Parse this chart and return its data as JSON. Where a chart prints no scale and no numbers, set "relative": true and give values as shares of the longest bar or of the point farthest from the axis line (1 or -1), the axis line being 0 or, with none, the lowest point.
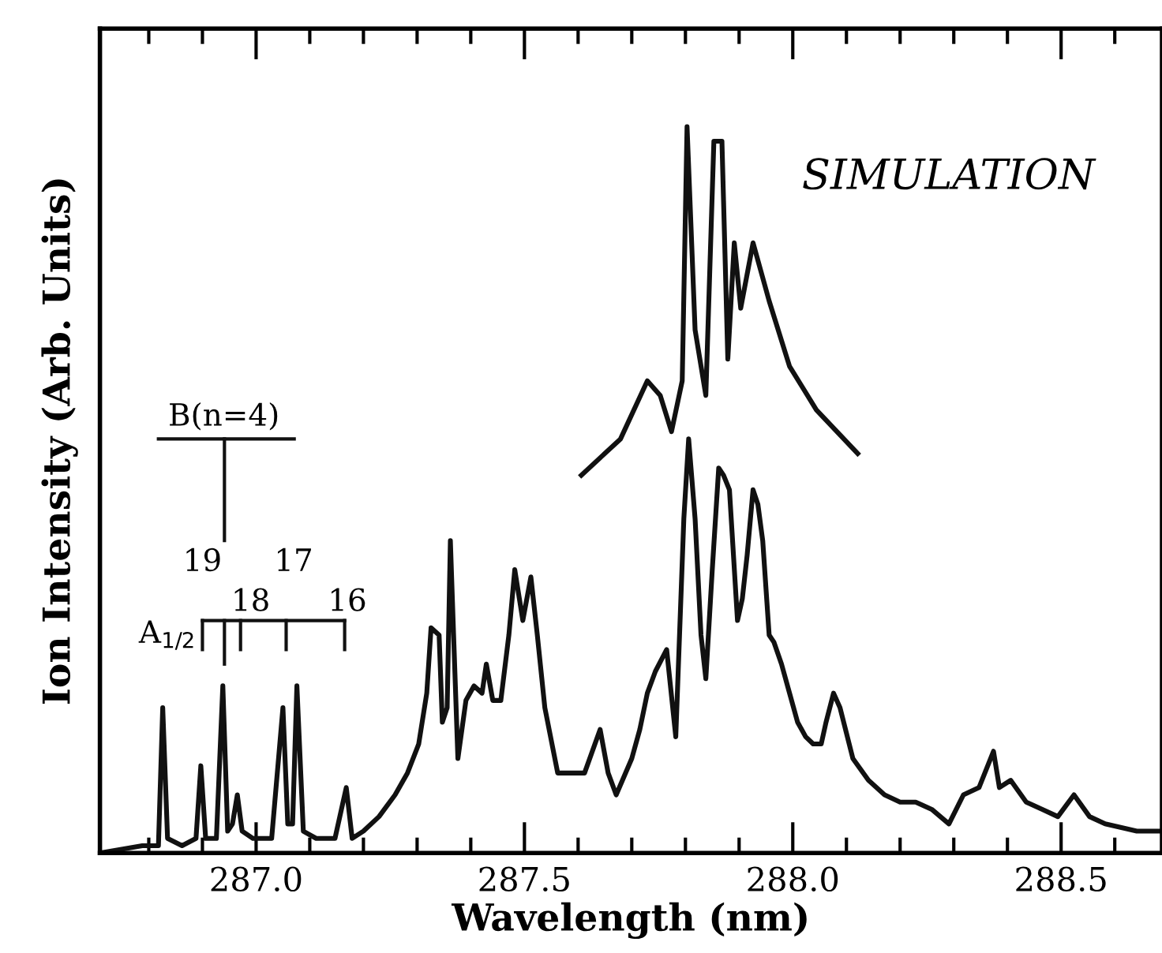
{
  "chart_data": {
    "type": "line",
    "relative": true,
    "xlabel": "Wavelength (nm)",
    "ylabel": "Ion Intensity (Arb. Units)",
    "xlim": [
      286.709,
      288.688
    ],
    "xticks": [
      {
        "value": 286.8,
        "label": null
      },
      {
        "value": 286.9,
        "label": null
      },
      {
        "value": 287.0,
        "label": "287.0"
      },
      {
        "value": 287.1,
        "label": null
      },
      {
        "value": 287.2,
        "label": null
      },
      {
        "value": 287.3,
        "label": null
      },
      {
        "value": 287.4,
        "label": null
      },
      {
        "value": 287.5,
        "label": "287.5"
      },
      {
        "value": 287.6,
        "label": null
      },
      {
        "value": 287.7,
        "label": null
      },
      {
        "value": 287.8,
        "label": null
      },
      {
        "value": 287.9,
        "label": null
      },
      {
        "value": 288.0,
        "label": "288.0"
      },
      {
        "value": 288.1,
        "label": null
      },
      {
        "value": 288.2,
        "label": null
      },
      {
        "value": 288.3,
        "label": null
      },
      {
        "value": 288.4,
        "label": null
      },
      {
        "value": 288.5,
        "label": "288.5"
      },
      {
        "value": 288.6,
        "label": null
      }
    ],
    "tick_labels": "x",
    "grid": false,
    "legend": false,
    "marker": "none",
    "line_style": "solid",
    "annotations": [
      "SIMULATION",
      "B(n=4)",
      "19",
      "18",
      "17",
      "16",
      "A$_{1/2}$"
    ],
    "series": [
      {
        "color": "#111111",
        "x": [
          286.709,
          286.788,
          286.818,
          286.826,
          286.835,
          286.862,
          286.888,
          286.897,
          286.906,
          286.926,
          286.938,
          286.947,
          286.956,
          286.965,
          286.974,
          286.994,
          287.029,
          287.05,
          287.059,
          287.068,
          287.076,
          287.088,
          287.112,
          287.147,
          287.168,
          287.179,
          287.2,
          287.229,
          287.259,
          287.282,
          287.303,
          287.318,
          287.326,
          287.341,
          287.347,
          287.356,
          287.362,
          287.368,
          287.376,
          287.391,
          287.406,
          287.421,
          287.429,
          287.441,
          287.456,
          287.471,
          287.482,
          287.497,
          287.512,
          287.524,
          287.538,
          287.562,
          287.582,
          287.612,
          287.641,
          287.656,
          287.671,
          287.7,
          287.715,
          287.729,
          287.744,
          287.765,
          287.782,
          287.797,
          287.806,
          287.818,
          287.829,
          287.838,
          287.85,
          287.862,
          287.871,
          287.882,
          287.897,
          287.906,
          287.915,
          287.926,
          287.935,
          287.944,
          287.956,
          287.965,
          287.979,
          287.994,
          288.009,
          288.024,
          288.038,
          288.053,
          288.062,
          288.076,
          288.088,
          288.112,
          288.141,
          288.171,
          288.2,
          288.229,
          288.259,
          288.291,
          288.318,
          288.347,
          288.374,
          288.385,
          288.406,
          288.435,
          288.465,
          288.494,
          288.524,
          288.553,
          288.582,
          288.641,
          288.688
        ],
        "values": [
          0.0,
          0.01,
          0.01,
          0.2,
          0.02,
          0.01,
          0.02,
          0.12,
          0.02,
          0.02,
          0.23,
          0.03,
          0.04,
          0.08,
          0.03,
          0.02,
          0.02,
          0.2,
          0.04,
          0.04,
          0.23,
          0.03,
          0.02,
          0.02,
          0.09,
          0.02,
          0.03,
          0.05,
          0.08,
          0.11,
          0.15,
          0.22,
          0.31,
          0.3,
          0.18,
          0.2,
          0.43,
          0.3,
          0.13,
          0.21,
          0.23,
          0.22,
          0.26,
          0.21,
          0.21,
          0.3,
          0.39,
          0.32,
          0.38,
          0.3,
          0.2,
          0.11,
          0.11,
          0.11,
          0.17,
          0.11,
          0.08,
          0.13,
          0.17,
          0.22,
          0.25,
          0.28,
          0.16,
          0.46,
          0.57,
          0.46,
          0.3,
          0.24,
          0.39,
          0.53,
          0.52,
          0.5,
          0.32,
          0.35,
          0.41,
          0.5,
          0.48,
          0.43,
          0.3,
          0.29,
          0.26,
          0.22,
          0.18,
          0.16,
          0.15,
          0.15,
          0.18,
          0.22,
          0.2,
          0.13,
          0.1,
          0.08,
          0.07,
          0.07,
          0.06,
          0.04,
          0.08,
          0.09,
          0.14,
          0.09,
          0.1,
          0.07,
          0.06,
          0.05,
          0.08,
          0.05,
          0.04,
          0.03,
          0.03
        ]
      },
      {
        "color": "#111111",
        "x": [
          287.606,
          287.679,
          287.729,
          287.753,
          287.774,
          287.794,
          287.803,
          287.818,
          287.838,
          287.853,
          287.868,
          287.879,
          287.891,
          287.903,
          287.926,
          287.956,
          287.994,
          288.044,
          288.121
        ],
        "values": [
          0.52,
          0.57,
          0.65,
          0.63,
          0.58,
          0.65,
          1.0,
          0.72,
          0.63,
          0.98,
          0.98,
          0.68,
          0.84,
          0.75,
          0.84,
          0.76,
          0.67,
          0.61,
          0.55
        ]
      }
    ]
  }
}
